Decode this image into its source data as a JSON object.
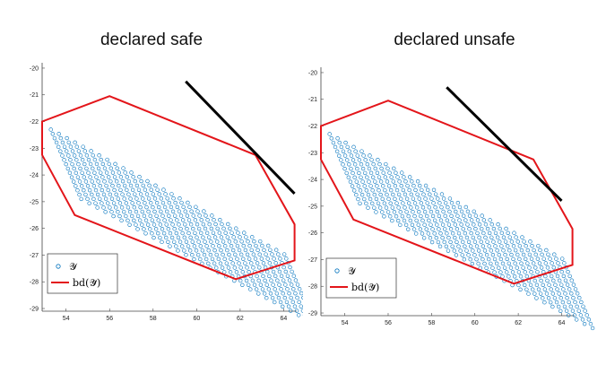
{
  "chart_data": [
    {
      "type": "scatter",
      "title": "declared safe",
      "xlim": [
        52.9,
        64.6
      ],
      "ylim": [
        -29.1,
        -19.8
      ],
      "xticks": [
        "54",
        "56",
        "58",
        "60",
        "62",
        "64"
      ],
      "yticks": [
        "-20",
        "-21",
        "-22",
        "-23",
        "-24",
        "-25",
        "-26",
        "-27",
        "-28",
        "-29"
      ],
      "legend": {
        "position": "bottom-left",
        "entries": [
          {
            "label": "𝒴",
            "marker": "circle",
            "color": "#0072BD"
          },
          {
            "label": "bd(𝒴̃)",
            "marker": "line",
            "color": "#E3151A"
          }
        ]
      },
      "scatter_grid": {
        "first_column_top": [
          53.3,
          -22.3
        ],
        "first_column_bottom": [
          54.7,
          -24.9
        ],
        "column_step": [
          0.37,
          0.161
        ],
        "columns": 30,
        "points_per_column": 17
      },
      "polygon": [
        [
          52.9,
          -22.0
        ],
        [
          56.0,
          -21.05
        ],
        [
          62.7,
          -23.25
        ],
        [
          64.5,
          -25.85
        ],
        [
          64.5,
          -27.2
        ],
        [
          61.8,
          -27.9
        ],
        [
          54.4,
          -25.5
        ],
        [
          52.9,
          -23.25
        ]
      ],
      "line": [
        [
          59.5,
          -20.5
        ],
        [
          64.5,
          -24.7
        ]
      ],
      "colors": {
        "points": "#0072BD",
        "boundary": "#E3151A",
        "line": "#000000"
      }
    },
    {
      "type": "scatter",
      "title": "declared unsafe",
      "xlim": [
        52.9,
        64.6
      ],
      "ylim": [
        -29.1,
        -19.8
      ],
      "xticks": [
        "54",
        "56",
        "58",
        "60",
        "62",
        "64"
      ],
      "yticks": [
        "-20",
        "-21",
        "-22",
        "-23",
        "-24",
        "-25",
        "-26",
        "-27",
        "-28",
        "-29"
      ],
      "legend": {
        "position": "bottom-left",
        "entries": [
          {
            "label": "𝒴",
            "marker": "circle",
            "color": "#0072BD"
          },
          {
            "label": "bd(𝒴̃)",
            "marker": "line",
            "color": "#E3151A"
          }
        ]
      },
      "scatter_grid": {
        "first_column_top": [
          53.3,
          -22.3
        ],
        "first_column_bottom": [
          54.7,
          -24.9
        ],
        "column_step": [
          0.37,
          0.161
        ],
        "columns": 30,
        "points_per_column": 17
      },
      "polygon": [
        [
          52.9,
          -22.0
        ],
        [
          56.0,
          -21.05
        ],
        [
          62.7,
          -23.25
        ],
        [
          64.5,
          -25.85
        ],
        [
          64.5,
          -27.2
        ],
        [
          61.8,
          -27.9
        ],
        [
          54.4,
          -25.5
        ],
        [
          52.9,
          -23.25
        ]
      ],
      "line": [
        [
          58.7,
          -20.55
        ],
        [
          64.0,
          -24.8
        ]
      ],
      "colors": {
        "points": "#0072BD",
        "boundary": "#E3151A",
        "line": "#000000"
      }
    }
  ]
}
